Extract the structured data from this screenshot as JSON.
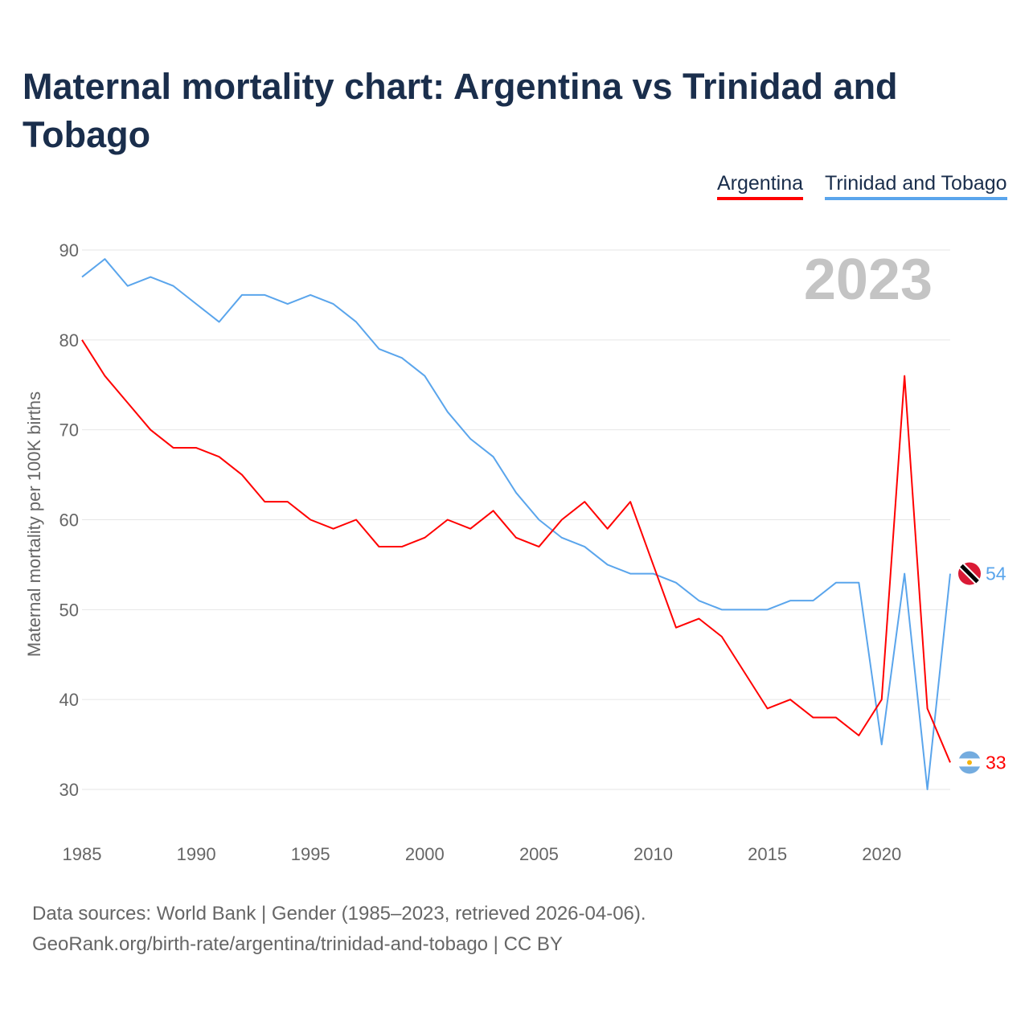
{
  "title": "Maternal mortality chart: Argentina vs Trinidad and Tobago",
  "source_line1": "Data sources: World Bank | Gender (1985–2023, retrieved 2026-04-06).",
  "source_line2": "GeoRank.org/birth-rate/argentina/trinidad-and-tobago | CC BY",
  "chart_data": {
    "type": "line",
    "title": "Maternal mortality chart: Argentina vs Trinidad and Tobago",
    "xlabel": "",
    "ylabel": "Maternal mortality per 100K births",
    "year_label": "2023",
    "xlim": [
      1985,
      2023
    ],
    "ylim": [
      30,
      90
    ],
    "x_ticks": [
      1985,
      1990,
      1995,
      2000,
      2005,
      2010,
      2015,
      2020
    ],
    "y_ticks": [
      30,
      40,
      50,
      60,
      70,
      80,
      90
    ],
    "grid": true,
    "legend_position": "top-right",
    "x": [
      1985,
      1986,
      1987,
      1988,
      1989,
      1990,
      1991,
      1992,
      1993,
      1994,
      1995,
      1996,
      1997,
      1998,
      1999,
      2000,
      2001,
      2002,
      2003,
      2004,
      2005,
      2006,
      2007,
      2008,
      2009,
      2010,
      2011,
      2012,
      2013,
      2014,
      2015,
      2016,
      2017,
      2018,
      2019,
      2020,
      2021,
      2022,
      2023
    ],
    "series": [
      {
        "name": "Argentina",
        "color": "#ff0000",
        "end_label": "33",
        "values": [
          80,
          76,
          73,
          70,
          68,
          68,
          67,
          65,
          62,
          62,
          60,
          59,
          60,
          57,
          57,
          58,
          60,
          59,
          61,
          58,
          57,
          60,
          62,
          59,
          62,
          55,
          48,
          49,
          47,
          43,
          39,
          40,
          38,
          38,
          36,
          40,
          76,
          39,
          33
        ]
      },
      {
        "name": "Trinidad and Tobago",
        "color": "#5aa5ec",
        "end_label": "54",
        "values": [
          87,
          89,
          86,
          87,
          86,
          84,
          82,
          85,
          85,
          84,
          85,
          84,
          82,
          79,
          78,
          76,
          72,
          69,
          67,
          63,
          60,
          58,
          57,
          55,
          54,
          54,
          53,
          51,
          50,
          50,
          50,
          51,
          51,
          53,
          53,
          35,
          54,
          30,
          54
        ]
      }
    ]
  }
}
